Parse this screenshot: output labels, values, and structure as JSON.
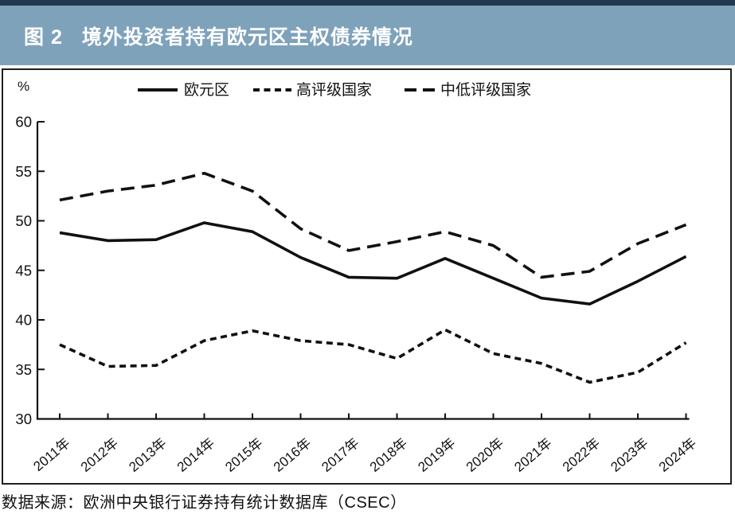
{
  "title_bar": {
    "figure_label": "图 2",
    "title": "境外投资者持有欧元区主权债券情况",
    "bg_color": "#7fa2bb",
    "accent_color": "#20394f",
    "text_color": "#ffffff"
  },
  "source_note": "数据来源：欧洲中央银行证券持有统计数据库（CSEC）",
  "chart_data": {
    "type": "line",
    "unit_label": "%",
    "categories": [
      "2011年",
      "2012年",
      "2013年",
      "2014年",
      "2015年",
      "2016年",
      "2017年",
      "2018年",
      "2019年",
      "2020年",
      "2021年",
      "2022年",
      "2023年",
      "2024年"
    ],
    "series": [
      {
        "name": "欧元区",
        "line_style": "solid",
        "values": [
          48.8,
          48.0,
          48.1,
          49.8,
          48.9,
          46.3,
          44.3,
          44.2,
          46.2,
          44.2,
          42.2,
          41.6,
          43.9,
          46.4
        ]
      },
      {
        "name": "高评级国家",
        "line_style": "dotted",
        "values": [
          37.5,
          35.3,
          35.4,
          37.9,
          38.9,
          37.9,
          37.5,
          36.1,
          39.0,
          36.6,
          35.6,
          33.7,
          34.7,
          37.7
        ]
      },
      {
        "name": "中低评级国家",
        "line_style": "dashed",
        "values": [
          52.1,
          53.0,
          53.6,
          54.8,
          53.0,
          49.2,
          47.0,
          47.9,
          48.9,
          47.5,
          44.3,
          44.9,
          47.7,
          49.6
        ]
      }
    ],
    "ylim": [
      30,
      60
    ],
    "yticks": [
      60,
      55,
      50,
      45,
      40,
      35,
      30
    ],
    "grid": false,
    "legend_position": "top",
    "line_color": "#111111"
  }
}
